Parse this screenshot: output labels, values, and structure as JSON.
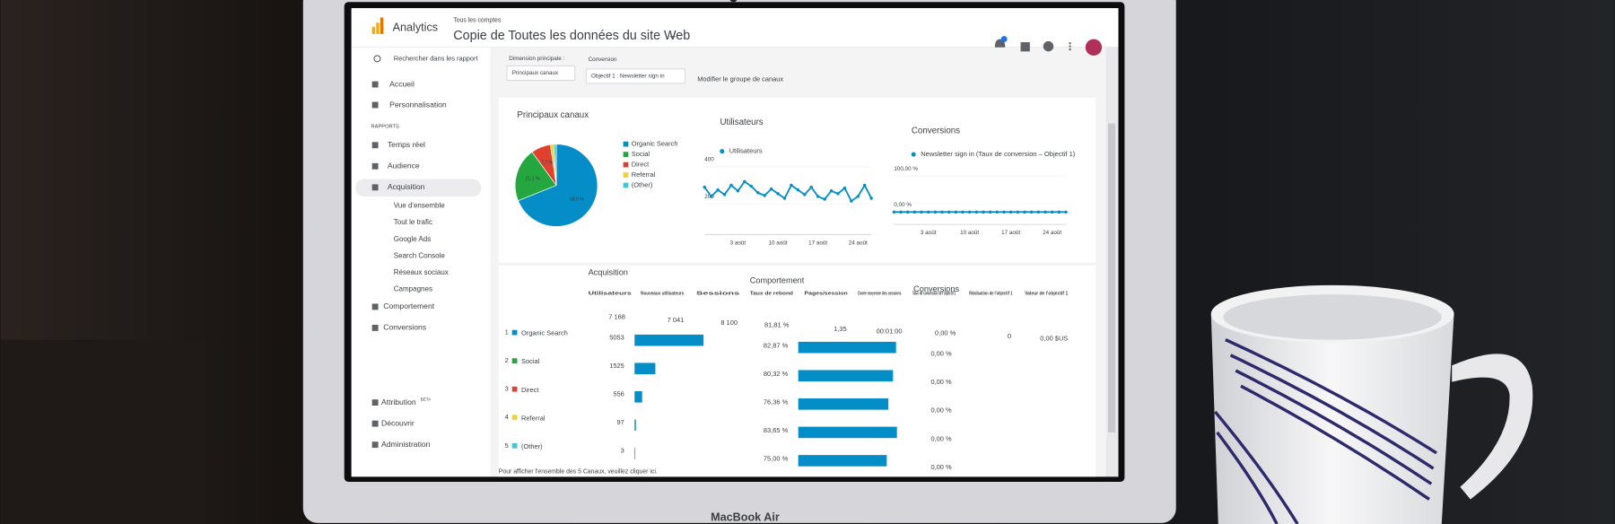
{
  "header": {
    "product": "Analytics",
    "breadcrumb": "Tous les comptes",
    "title": "Copie de Toutes les données du site Web"
  },
  "sidebar": {
    "search": "Rechercher dans les rapport",
    "items": [
      "Accueil",
      "Personnalisation"
    ],
    "section": "RAPPORTS",
    "reports": [
      "Temps réel",
      "Audience",
      "Acquisition"
    ],
    "sub": [
      "Vue d'ensemble",
      "Tout le trafic",
      "Google Ads",
      "Search Console",
      "Réseaux sociaux",
      "Campagnes"
    ],
    "more": [
      "Comportement",
      "Conversions"
    ],
    "footer": [
      "Attribution",
      "Découvrir",
      "Administration"
    ],
    "beta": "BETA"
  },
  "filters": {
    "dimension_label": "Dimension principale :",
    "dimension": "Principaux canaux",
    "conversion_label": "Conversion",
    "conversion": "Objectif 1 : Newsletter sign in",
    "link": "Modifier le groupe de canaux"
  },
  "chart_data": [
    {
      "type": "pie",
      "title": "Principaux canaux",
      "categories": [
        "Organic Search",
        "Social",
        "Direct",
        "Referral",
        "(Other)"
      ],
      "values": [
        68.9,
        21.1,
        7.7,
        1.3,
        1.0
      ],
      "value_labels": [
        "68.9 %",
        "21.1 %",
        "7.7 %",
        null,
        null
      ],
      "colors": [
        "#058dc7",
        "#24a73e",
        "#e0402e",
        "#f2d135",
        "#3fc8d6"
      ]
    },
    {
      "type": "line",
      "title": "Utilisateurs",
      "series": [
        {
          "name": "Utilisateurs",
          "color": "#058dc7",
          "values": [
            290,
            240,
            275,
            250,
            300,
            270,
            320,
            295,
            260,
            245,
            280,
            255,
            230,
            300,
            275,
            250,
            290,
            240,
            225,
            270,
            255,
            285,
            215,
            240,
            300,
            230
          ]
        }
      ],
      "categories": [
        null,
        null,
        null,
        null,
        null,
        "3 août",
        null,
        null,
        null,
        null,
        null,
        "10 août",
        null,
        null,
        null,
        null,
        null,
        "17 août",
        null,
        null,
        null,
        null,
        null,
        "24 août",
        null,
        null
      ],
      "ylim": [
        100,
        450
      ],
      "yticks": [
        200,
        400
      ],
      "grid": true
    },
    {
      "type": "line",
      "title": "Conversions",
      "series": [
        {
          "name": "Newsletter sign in (Taux de conversion – Objectif 1)",
          "color": "#058dc7",
          "values": [
            0,
            0,
            0,
            0,
            0,
            0,
            0,
            0,
            0,
            0,
            0,
            0,
            0,
            0,
            0,
            0,
            0,
            0,
            0,
            0,
            0,
            0,
            0,
            0,
            0,
            0
          ]
        }
      ],
      "categories": [
        null,
        null,
        null,
        null,
        null,
        "3 août",
        null,
        null,
        null,
        null,
        null,
        "10 août",
        null,
        null,
        null,
        null,
        null,
        "17 août",
        null,
        null,
        null,
        null,
        null,
        "24 août",
        null,
        null
      ],
      "ylim": [
        0,
        100
      ],
      "yticks": [
        {
          "value": 100,
          "label": "100,00 %"
        },
        {
          "value": 0,
          "label": "0,00 %"
        }
      ],
      "grid": false
    }
  ],
  "table": {
    "groups": [
      "Acquisition",
      "Comportement",
      "Conversions"
    ],
    "columns": [
      "Utilisateurs",
      "Nouveaux utilisateurs",
      "Sessions",
      "Taux de rebond",
      "Pages/session",
      "Durée moyenne des sessions",
      "Taux de conversion de l'objectif 1",
      "Réalisation de l'objectif 1",
      "Valeur de l'objectif 1"
    ],
    "totals": [
      "7 168",
      "7 041",
      "8 100",
      "81,81 %",
      "1,35",
      "00:01:00",
      "0,00 %",
      "0",
      "0,00 $US"
    ],
    "rows": [
      {
        "index": 1,
        "channel": "Organic Search",
        "users": 5053,
        "bounce": {
          "value": 82.87,
          "label": "82,87 %"
        },
        "conversion": "0,00 %"
      },
      {
        "index": 2,
        "channel": "Social",
        "users": 1525,
        "bounce": {
          "value": 80.32,
          "label": "80,32 %"
        },
        "conversion": "0,00 %"
      },
      {
        "index": 3,
        "channel": "Direct",
        "users": 556,
        "bounce": {
          "value": 76.36,
          "label": "76,36 %"
        },
        "conversion": "0,00 %"
      },
      {
        "index": 4,
        "channel": "Referral",
        "users": 97,
        "bounce": {
          "value": 83.65,
          "label": "83,65 %"
        },
        "conversion": "0,00 %"
      },
      {
        "index": 5,
        "channel": "(Other)",
        "users": 3,
        "bounce": {
          "value": 75.0,
          "label": "75,00 %"
        },
        "conversion": "0,00 %"
      }
    ],
    "note": "Pour afficher l'ensemble des 5 Canaux, veuillez cliquer ici."
  },
  "laptop_label": "MacBook Air"
}
